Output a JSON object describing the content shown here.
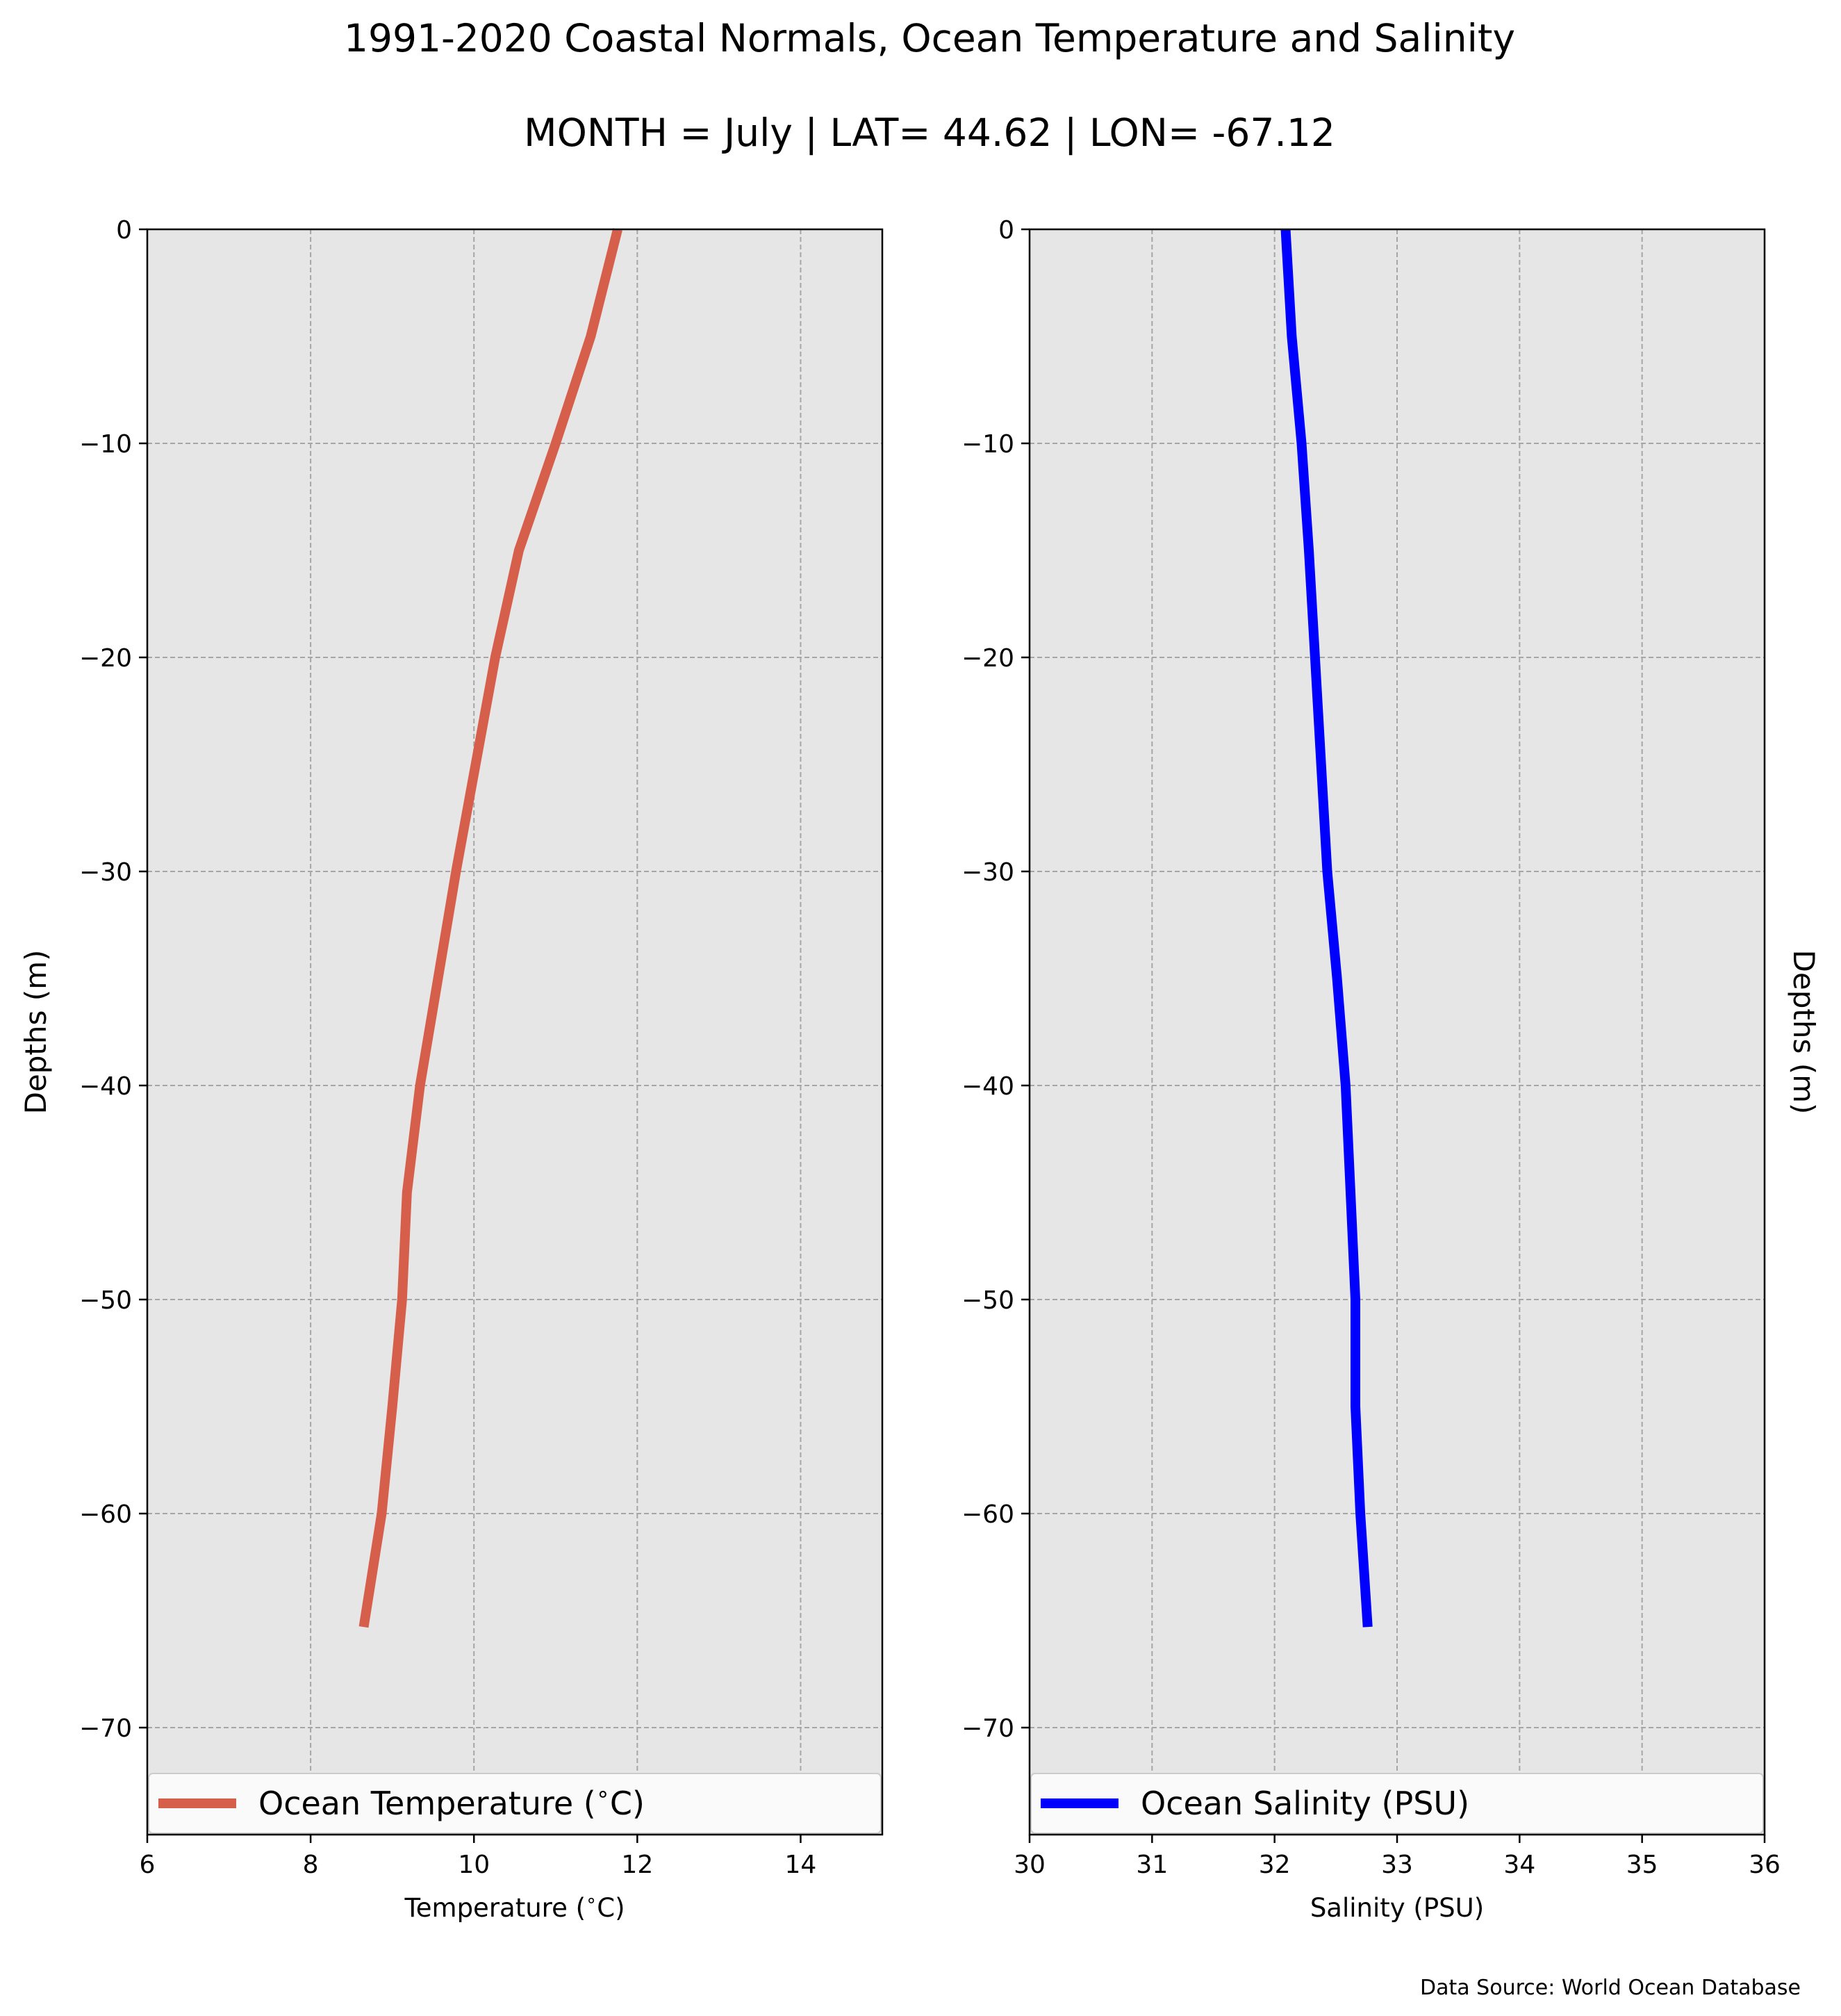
{
  "figure": {
    "title": "1991-2020 Coastal Normals, Ocean Temperature and Salinity",
    "subtitle": "MONTH = July | LAT= 44.62 | LON= -67.12",
    "source": "Data Source: World Ocean Database",
    "background": "#ffffff",
    "axes_facecolor": "#e6e6e6",
    "grid_color": "#a6a6a6"
  },
  "chart_data": [
    {
      "type": "line",
      "orientation": "vertical-profile",
      "xlabel": "Temperature ($^\\circ$C)",
      "ylabel": "Depths (m)",
      "xlim": [
        6,
        15
      ],
      "ylim": [
        -75,
        0
      ],
      "xticks": [
        6,
        8,
        10,
        12,
        14
      ],
      "yticks": [
        0,
        -10,
        -20,
        -30,
        -40,
        -50,
        -60,
        -70
      ],
      "ytick_labels": [
        "0",
        "−10",
        "−20",
        "−30",
        "−40",
        "−50",
        "−60",
        "−70"
      ],
      "grid": true,
      "legend_position": "lower-center",
      "series": [
        {
          "name": "Ocean Temperature ($^\\circ$C)",
          "color": "#d65f4c",
          "points": [
            {
              "x": 11.76,
              "y": 0
            },
            {
              "x": 11.43,
              "y": -5
            },
            {
              "x": 11.0,
              "y": -10
            },
            {
              "x": 10.55,
              "y": -15
            },
            {
              "x": 10.26,
              "y": -20
            },
            {
              "x": 10.02,
              "y": -25
            },
            {
              "x": 9.78,
              "y": -30
            },
            {
              "x": 9.56,
              "y": -35
            },
            {
              "x": 9.34,
              "y": -40
            },
            {
              "x": 9.18,
              "y": -45
            },
            {
              "x": 9.12,
              "y": -50
            },
            {
              "x": 9.0,
              "y": -55
            },
            {
              "x": 8.87,
              "y": -60
            },
            {
              "x": 8.65,
              "y": -65.3
            }
          ]
        }
      ]
    },
    {
      "type": "line",
      "orientation": "vertical-profile",
      "xlabel": "Salinity (PSU)",
      "ylabel": "Depths (m)",
      "xlim": [
        30,
        36
      ],
      "ylim": [
        -75,
        0
      ],
      "xticks": [
        30,
        31,
        32,
        33,
        34,
        35,
        36
      ],
      "yticks": [
        0,
        -10,
        -20,
        -30,
        -40,
        -50,
        -60,
        -70
      ],
      "ytick_labels": [
        "0",
        "−10",
        "−20",
        "−30",
        "−40",
        "−50",
        "−60",
        "−70"
      ],
      "grid": true,
      "legend_position": "lower-center",
      "series": [
        {
          "name": "Ocean Salinity (PSU)",
          "color": "#0000ff",
          "points": [
            {
              "x": 32.09,
              "y": 0
            },
            {
              "x": 32.14,
              "y": -5
            },
            {
              "x": 32.22,
              "y": -10
            },
            {
              "x": 32.28,
              "y": -15
            },
            {
              "x": 32.33,
              "y": -20
            },
            {
              "x": 32.38,
              "y": -25
            },
            {
              "x": 32.43,
              "y": -30
            },
            {
              "x": 32.51,
              "y": -35
            },
            {
              "x": 32.58,
              "y": -40
            },
            {
              "x": 32.62,
              "y": -45
            },
            {
              "x": 32.66,
              "y": -50
            },
            {
              "x": 32.66,
              "y": -55
            },
            {
              "x": 32.7,
              "y": -60
            },
            {
              "x": 32.76,
              "y": -65.3
            }
          ]
        }
      ]
    }
  ]
}
